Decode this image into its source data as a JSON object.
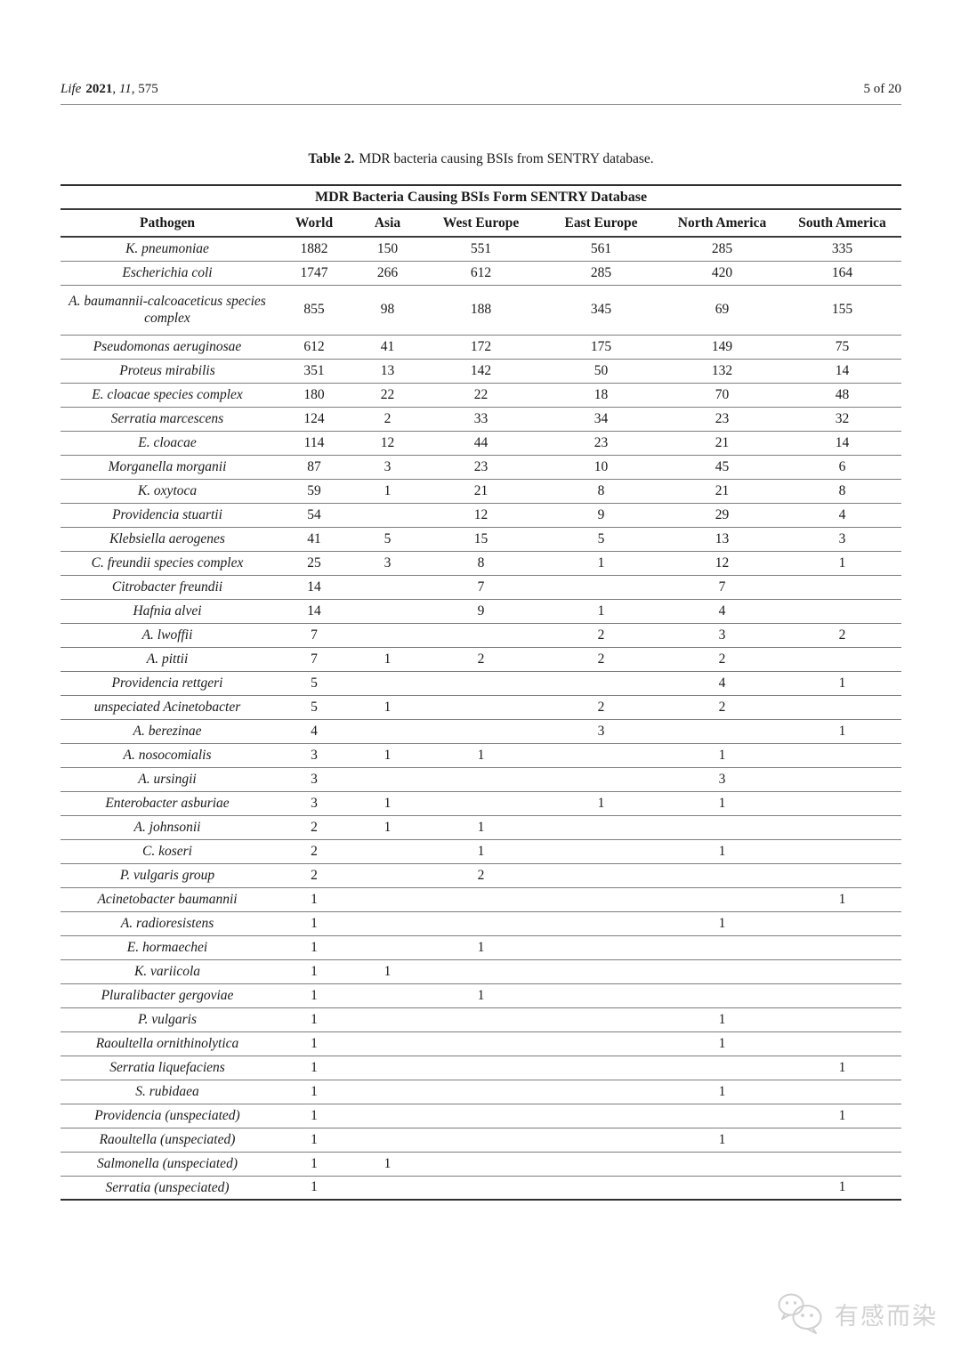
{
  "header": {
    "journal_title": "Life",
    "year": "2021",
    "sep1": ", ",
    "volume": "11",
    "sep2": ", ",
    "article_number": "575",
    "page_indicator": "5 of 20"
  },
  "caption": {
    "label": "Table 2.",
    "text": "MDR bacteria causing BSIs from SENTRY database."
  },
  "table": {
    "spanning_header": "MDR Bacteria Causing BSIs Form SENTRY Database",
    "columns": [
      "Pathogen",
      "World",
      "Asia",
      "West Europe",
      "East Europe",
      "North America",
      "South America"
    ],
    "rows": [
      {
        "pathogen": "K. pneumoniae",
        "values": [
          "1882",
          "150",
          "551",
          "561",
          "285",
          "335"
        ]
      },
      {
        "pathogen": "Escherichia coli",
        "values": [
          "1747",
          "266",
          "612",
          "285",
          "420",
          "164"
        ]
      },
      {
        "pathogen": "A. baumannii-calcoaceticus species complex",
        "values": [
          "855",
          "98",
          "188",
          "345",
          "69",
          "155"
        ]
      },
      {
        "pathogen": "Pseudomonas aeruginosae",
        "values": [
          "612",
          "41",
          "172",
          "175",
          "149",
          "75"
        ]
      },
      {
        "pathogen": "Proteus mirabilis",
        "values": [
          "351",
          "13",
          "142",
          "50",
          "132",
          "14"
        ]
      },
      {
        "pathogen": "E. cloacae species complex",
        "values": [
          "180",
          "22",
          "22",
          "18",
          "70",
          "48"
        ]
      },
      {
        "pathogen": "Serratia marcescens",
        "values": [
          "124",
          "2",
          "33",
          "34",
          "23",
          "32"
        ]
      },
      {
        "pathogen": "E. cloacae",
        "values": [
          "114",
          "12",
          "44",
          "23",
          "21",
          "14"
        ]
      },
      {
        "pathogen": "Morganella morganii",
        "values": [
          "87",
          "3",
          "23",
          "10",
          "45",
          "6"
        ]
      },
      {
        "pathogen": "K. oxytoca",
        "values": [
          "59",
          "1",
          "21",
          "8",
          "21",
          "8"
        ]
      },
      {
        "pathogen": "Providencia stuartii",
        "values": [
          "54",
          "",
          "12",
          "9",
          "29",
          "4"
        ]
      },
      {
        "pathogen": "Klebsiella aerogenes",
        "values": [
          "41",
          "5",
          "15",
          "5",
          "13",
          "3"
        ]
      },
      {
        "pathogen": "C. freundii species complex",
        "values": [
          "25",
          "3",
          "8",
          "1",
          "12",
          "1"
        ]
      },
      {
        "pathogen": "Citrobacter freundii",
        "values": [
          "14",
          "",
          "7",
          "",
          "7",
          ""
        ]
      },
      {
        "pathogen": "Hafnia alvei",
        "values": [
          "14",
          "",
          "9",
          "1",
          "4",
          ""
        ]
      },
      {
        "pathogen": "A. lwoffii",
        "values": [
          "7",
          "",
          "",
          "2",
          "3",
          "2"
        ]
      },
      {
        "pathogen": "A. pittii",
        "values": [
          "7",
          "1",
          "2",
          "2",
          "2",
          ""
        ]
      },
      {
        "pathogen": "Providencia rettgeri",
        "values": [
          "5",
          "",
          "",
          "",
          "4",
          "1"
        ]
      },
      {
        "pathogen": "unspeciated Acinetobacter",
        "values": [
          "5",
          "1",
          "",
          "2",
          "2",
          ""
        ]
      },
      {
        "pathogen": "A. berezinae",
        "values": [
          "4",
          "",
          "",
          "3",
          "",
          "1"
        ]
      },
      {
        "pathogen": "A. nosocomialis",
        "values": [
          "3",
          "1",
          "1",
          "",
          "1",
          ""
        ]
      },
      {
        "pathogen": "A. ursingii",
        "values": [
          "3",
          "",
          "",
          "",
          "3",
          ""
        ]
      },
      {
        "pathogen": "Enterobacter asburiae",
        "values": [
          "3",
          "1",
          "",
          "1",
          "1",
          ""
        ]
      },
      {
        "pathogen": "A. johnsonii",
        "values": [
          "2",
          "1",
          "1",
          "",
          "",
          ""
        ]
      },
      {
        "pathogen": "C. koseri",
        "values": [
          "2",
          "",
          "1",
          "",
          "1",
          ""
        ]
      },
      {
        "pathogen": "P. vulgaris group",
        "values": [
          "2",
          "",
          "2",
          "",
          "",
          ""
        ]
      },
      {
        "pathogen": "Acinetobacter baumannii",
        "values": [
          "1",
          "",
          "",
          "",
          "",
          "1"
        ]
      },
      {
        "pathogen": "A. radioresistens",
        "values": [
          "1",
          "",
          "",
          "",
          "1",
          ""
        ]
      },
      {
        "pathogen": "E. hormaechei",
        "values": [
          "1",
          "",
          "1",
          "",
          "",
          ""
        ]
      },
      {
        "pathogen": "K. variicola",
        "values": [
          "1",
          "1",
          "",
          "",
          "",
          ""
        ]
      },
      {
        "pathogen": "Pluralibacter gergoviae",
        "values": [
          "1",
          "",
          "1",
          "",
          "",
          ""
        ]
      },
      {
        "pathogen": "P. vulgaris",
        "values": [
          "1",
          "",
          "",
          "",
          "1",
          ""
        ]
      },
      {
        "pathogen": "Raoultella ornithinolytica",
        "values": [
          "1",
          "",
          "",
          "",
          "1",
          ""
        ]
      },
      {
        "pathogen": "Serratia liquefaciens",
        "values": [
          "1",
          "",
          "",
          "",
          "",
          "1"
        ]
      },
      {
        "pathogen": "S. rubidaea",
        "values": [
          "1",
          "",
          "",
          "",
          "1",
          ""
        ]
      },
      {
        "pathogen": "Providencia (unspeciated)",
        "values": [
          "1",
          "",
          "",
          "",
          "",
          "1"
        ]
      },
      {
        "pathogen": "Raoultella (unspeciated)",
        "values": [
          "1",
          "",
          "",
          "",
          "1",
          ""
        ]
      },
      {
        "pathogen": "Salmonella (unspeciated)",
        "values": [
          "1",
          "1",
          "",
          "",
          "",
          ""
        ]
      },
      {
        "pathogen": "Serratia (unspeciated)",
        "values": [
          "1",
          "",
          "",
          "",
          "",
          "1"
        ]
      }
    ]
  },
  "watermark": {
    "icon": "wechat-logo-icon",
    "text": "有感而染"
  }
}
